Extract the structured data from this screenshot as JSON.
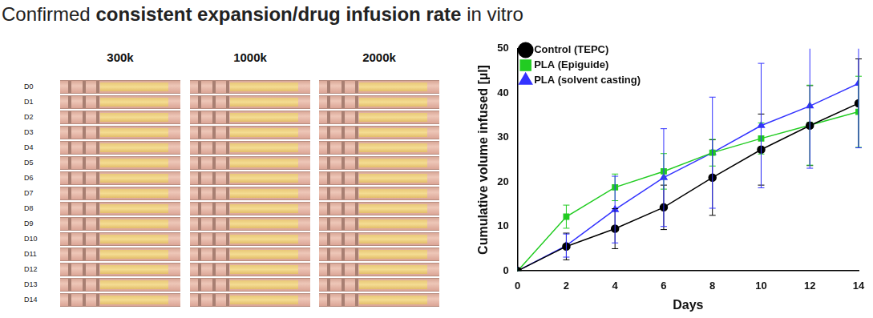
{
  "header": {
    "title": [
      "Confirmed",
      "consistent expansion/drug infusion rate",
      "in vitro"
    ]
  },
  "photo": {
    "columns": [
      "300k",
      "1000k",
      "2000k"
    ],
    "rows": [
      "D0",
      "D1",
      "D2",
      "D3",
      "D4",
      "D5",
      "D6",
      "D7",
      "D8",
      "D9",
      "D10",
      "D11",
      "D12",
      "D13",
      "D14"
    ]
  },
  "chart_data": {
    "type": "line",
    "x_label": "Days",
    "y_label": "Cumulative volume infused [µl]",
    "x": [
      0,
      2,
      4,
      6,
      8,
      10,
      12,
      14
    ],
    "xlim": [
      0,
      14
    ],
    "xticks": [
      0,
      2,
      4,
      6,
      8,
      10,
      12,
      14
    ],
    "ylim": [
      0,
      50
    ],
    "yticks": [
      0,
      10,
      20,
      30,
      40,
      50
    ],
    "grid": false,
    "legend": "upper left",
    "series": [
      {
        "name": "Control (TEPC)",
        "color": "#000000",
        "marker": "circle",
        "values": [
          0,
          5.5,
          9.5,
          14.3,
          21,
          27.3,
          32.7,
          37.7
        ],
        "errors": [
          0,
          3,
          4.5,
          5,
          8.5,
          8,
          9,
          10
        ]
      },
      {
        "name": "PLA (Epiguide)",
        "color": "#22cc22",
        "marker": "square",
        "values": [
          0,
          12.2,
          18.8,
          22.4,
          26.6,
          29.8,
          32.8,
          35.8
        ],
        "errors": [
          0,
          2.6,
          3,
          4,
          3,
          3.5,
          9,
          8
        ]
      },
      {
        "name": "PLA (solvent casting)",
        "color": "#3333ff",
        "marker": "triangle",
        "values": [
          0,
          5.7,
          13.8,
          21,
          26.6,
          32.7,
          37.1,
          42.2
        ],
        "errors": [
          0,
          2.6,
          7.5,
          11,
          12.5,
          14,
          14,
          14.5
        ]
      }
    ]
  }
}
